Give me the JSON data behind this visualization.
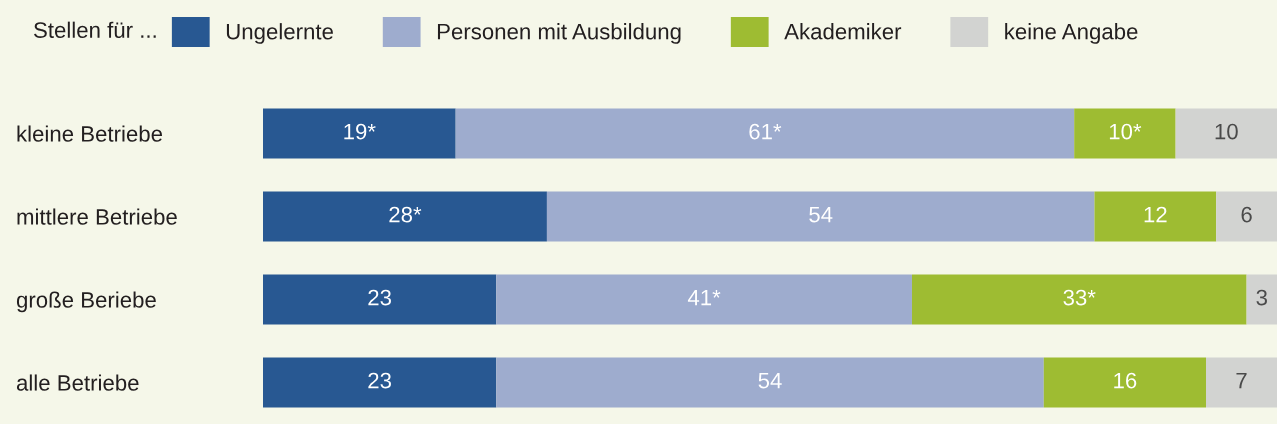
{
  "chart_data": {
    "type": "bar",
    "orientation": "horizontal",
    "stacked": true,
    "categories": [
      "kleine Betriebe",
      "mittlere Betriebe",
      "große Beriebe",
      "alle Betriebe"
    ],
    "xlim": [
      0,
      100
    ],
    "tick_labels": "y",
    "grid": false,
    "legend": "top",
    "legend_title": "Stellen für ...",
    "series": [
      {
        "name": "Ungelernte",
        "color": "#285892",
        "values": [
          19,
          28,
          23,
          23
        ],
        "value_labels": [
          "19*",
          "28*",
          "23",
          "23"
        ]
      },
      {
        "name": "Personen mit Ausbildung",
        "color": "#9eacce",
        "values": [
          61,
          54,
          41,
          54
        ],
        "value_labels": [
          "61*",
          "54",
          "41*",
          "54"
        ]
      },
      {
        "name": "Akademiker",
        "color": "#9ebc32",
        "values": [
          10,
          12,
          33,
          16
        ],
        "value_labels": [
          "10*",
          "12",
          "33*",
          "16"
        ]
      },
      {
        "name": "keine Angabe",
        "color": "#d2d3d1",
        "values": [
          10,
          6,
          3,
          7
        ],
        "value_labels": [
          "10",
          "6",
          "3",
          "7"
        ]
      }
    ]
  }
}
